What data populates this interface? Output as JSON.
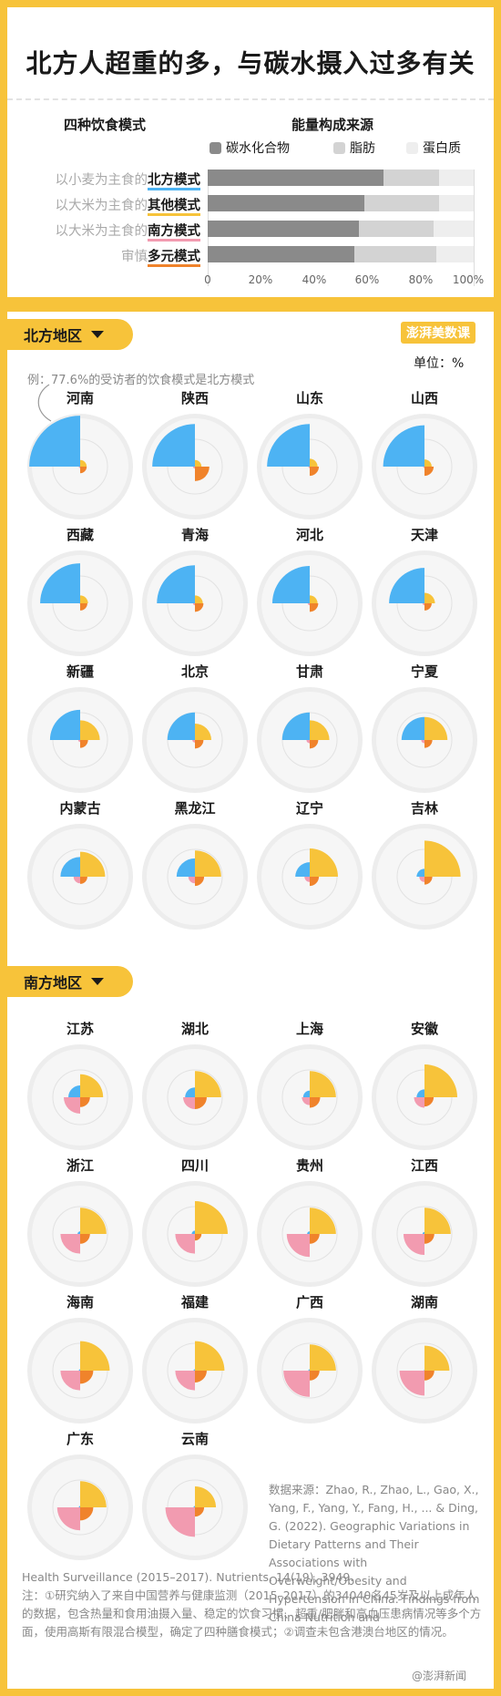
{
  "title": "北方人超重的多，与碳水摄入过多有关",
  "top_chart": {
    "left_header": "四种饮食模式",
    "right_header": "能量构成来源",
    "legend": [
      {
        "label": "碳水化合物",
        "color": "#8a8a8a"
      },
      {
        "label": "脂肪",
        "color": "#d3d3d3"
      },
      {
        "label": "蛋白质",
        "color": "#eeeeee"
      }
    ],
    "ticks": [
      "0",
      "20%",
      "40%",
      "60%",
      "80%",
      "100%"
    ],
    "rows": [
      {
        "prefix": "以小麦为主食的",
        "mode": "北方模式",
        "underline": "#4db3f3"
      },
      {
        "prefix": "以大米为主食的",
        "mode": "其他模式",
        "underline": "#f7c33a"
      },
      {
        "prefix": "以大米为主食的",
        "mode": "南方模式",
        "underline": "#f29bb0"
      },
      {
        "prefix": "审慎",
        "mode": "多元模式",
        "underline": "#f0832b"
      }
    ]
  },
  "chart_data": {
    "type": "bar",
    "stacked": true,
    "orientation": "horizontal",
    "categories": [
      "北方模式",
      "其他模式",
      "南方模式",
      "多元模式"
    ],
    "series": [
      {
        "name": "碳水化合物",
        "values": [
          66,
          59,
          57,
          55
        ],
        "color": "#8a8a8a"
      },
      {
        "name": "脂肪",
        "values": [
          21,
          28,
          28,
          31
        ],
        "color": "#d3d3d3"
      },
      {
        "name": "蛋白质",
        "values": [
          13,
          13,
          15,
          14
        ],
        "color": "#eeeeee"
      }
    ],
    "xlim": [
      0,
      100
    ]
  },
  "mode_colors": {
    "北方模式": "#4db3f3",
    "其他模式": "#f7c33a",
    "南方模式": "#f29bb0",
    "多元模式": "#f0832b"
  },
  "north": {
    "label": "北方地区",
    "logo": "澎湃美数课",
    "unit": "单位：%",
    "example": "例：77.6%的受访者的饮食模式是北方模式",
    "provinces": [
      {
        "name": "河南",
        "north": 77.6,
        "other": 10,
        "south": 2,
        "diverse": 10
      },
      {
        "name": "陕西",
        "north": 65,
        "other": 10,
        "south": 3,
        "diverse": 22
      },
      {
        "name": "山东",
        "north": 65,
        "other": 12,
        "south": 2,
        "diverse": 14
      },
      {
        "name": "山西",
        "north": 63,
        "other": 11,
        "south": 2,
        "diverse": 14
      },
      {
        "name": "西藏",
        "north": 61,
        "other": 12,
        "south": 1,
        "diverse": 11
      },
      {
        "name": "青海",
        "north": 58,
        "other": 12,
        "south": 3,
        "diverse": 13
      },
      {
        "name": "河北",
        "north": 57,
        "other": 12,
        "south": 3,
        "diverse": 13
      },
      {
        "name": "天津",
        "north": 54,
        "other": 16,
        "south": 3,
        "diverse": 11
      },
      {
        "name": "新疆",
        "north": 46,
        "other": 30,
        "south": 3,
        "diverse": 12
      },
      {
        "name": "北京",
        "north": 42,
        "other": 25,
        "south": 4,
        "diverse": 13
      },
      {
        "name": "甘肃",
        "north": 42,
        "other": 30,
        "south": 5,
        "diverse": 13
      },
      {
        "name": "宁夏",
        "north": 35,
        "other": 35,
        "south": 5,
        "diverse": 12
      },
      {
        "name": "内蒙古",
        "north": 30,
        "other": 38,
        "south": 10,
        "diverse": 11
      },
      {
        "name": "黑龙江",
        "north": 28,
        "other": 40,
        "south": 10,
        "diverse": 14
      },
      {
        "name": "辽宁",
        "north": 22,
        "other": 43,
        "south": 8,
        "diverse": 14
      },
      {
        "name": "吉林",
        "north": 12,
        "other": 55,
        "south": 8,
        "diverse": 12
      }
    ]
  },
  "south": {
    "label": "南方地区",
    "provinces": [
      {
        "name": "江苏",
        "north": 18,
        "other": 35,
        "south": 25,
        "diverse": 15
      },
      {
        "name": "湖北",
        "north": 15,
        "other": 40,
        "south": 18,
        "diverse": 18
      },
      {
        "name": "上海",
        "north": 10,
        "other": 40,
        "south": 12,
        "diverse": 16
      },
      {
        "name": "安徽",
        "north": 12,
        "other": 50,
        "south": 16,
        "diverse": 14
      },
      {
        "name": "浙江",
        "north": 4,
        "other": 40,
        "south": 30,
        "diverse": 15
      },
      {
        "name": "四川",
        "north": 5,
        "other": 50,
        "south": 30,
        "diverse": 10
      },
      {
        "name": "贵州",
        "north": 4,
        "other": 40,
        "south": 35,
        "diverse": 15
      },
      {
        "name": "江西",
        "north": 3,
        "other": 40,
        "south": 32,
        "diverse": 15
      },
      {
        "name": "海南",
        "north": 2,
        "other": 45,
        "south": 30,
        "diverse": 20
      },
      {
        "name": "福建",
        "north": 2,
        "other": 45,
        "south": 30,
        "diverse": 18
      },
      {
        "name": "广西",
        "north": 2,
        "other": 40,
        "south": 40,
        "diverse": 15
      },
      {
        "name": "湖南",
        "north": 1,
        "other": 38,
        "south": 38,
        "diverse": 15
      },
      {
        "name": "广东",
        "north": 2,
        "other": 40,
        "south": 35,
        "diverse": 20
      },
      {
        "name": "云南",
        "north": 2,
        "other": 32,
        "south": 45,
        "diverse": 14
      }
    ]
  },
  "source": "数据来源：Zhao, R., Zhao, L., Gao, X., Yang, F., Yang, Y., Fang, H., ... & Ding, G. (2022). Geographic Variations in Dietary Patterns and Their Associations with Overweight/Obesity and Hypertension in China: Findings from China Nutrition and",
  "source_cont": "Health Surveillance (2015–2017). Nutrients, 14(19), 3949.",
  "note": "注：①研究纳入了来自中国营养与健康监测（2015–2017）的34040名45岁及以上成年人的数据，包含热量和食用油摄入量、稳定的饮食习惯、超重/肥胖和高血压患病情况等多个方面，使用高斯有限混合模型，确定了四种膳食模式；②调查未包含港澳台地区的情况。",
  "credit": "@澎湃新闻"
}
